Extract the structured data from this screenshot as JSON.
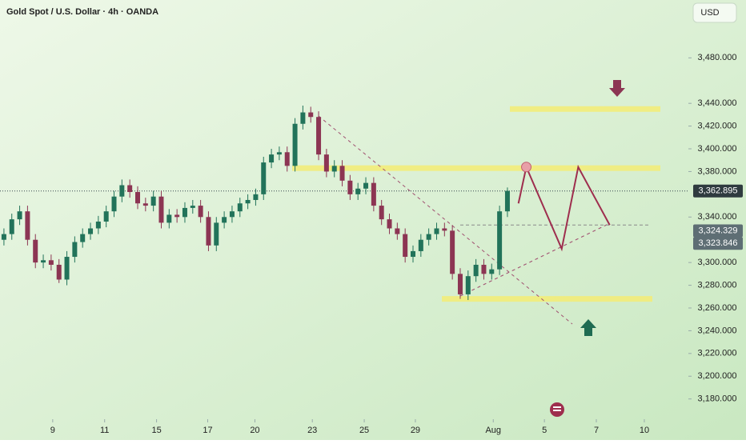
{
  "chart_data": {
    "type": "candlestick",
    "title": "Gold Spot / U.S. Dollar · 4h · OANDA",
    "currency": "USD",
    "up_color": "#22735a",
    "down_color": "#8c3553",
    "open": [
      3320,
      3325,
      3338,
      3345,
      3320,
      3300,
      3302,
      3298,
      3285,
      3305,
      3318,
      3325,
      3330,
      3336,
      3345,
      3358,
      3368,
      3362,
      3352,
      3350,
      3358,
      3335,
      3342,
      3340,
      3348,
      3350,
      3340,
      3315,
      3335,
      3340,
      3345,
      3352,
      3355,
      3360,
      3388,
      3395,
      3397,
      3385,
      3422,
      3432,
      3428,
      3395,
      3380,
      3385,
      3372,
      3360,
      3365,
      3370,
      3350,
      3338,
      3330,
      3325,
      3305,
      3310,
      3320,
      3325,
      3330,
      3328,
      3290,
      3272,
      3288,
      3298,
      3290,
      3294,
      3345
    ],
    "high": [
      3330,
      3343,
      3350,
      3350,
      3325,
      3307,
      3307,
      3303,
      3310,
      3323,
      3330,
      3335,
      3341,
      3350,
      3363,
      3373,
      3373,
      3367,
      3357,
      3363,
      3363,
      3347,
      3347,
      3353,
      3355,
      3355,
      3345,
      3340,
      3345,
      3350,
      3357,
      3360,
      3365,
      3393,
      3400,
      3402,
      3402,
      3427,
      3438,
      3437,
      3433,
      3400,
      3390,
      3390,
      3377,
      3370,
      3375,
      3375,
      3355,
      3343,
      3335,
      3330,
      3315,
      3325,
      3330,
      3335,
      3335,
      3333,
      3295,
      3293,
      3303,
      3303,
      3299,
      3350,
      3366
    ],
    "low": [
      3315,
      3320,
      3333,
      3315,
      3295,
      3295,
      3293,
      3282,
      3280,
      3300,
      3313,
      3320,
      3325,
      3331,
      3340,
      3353,
      3357,
      3347,
      3345,
      3345,
      3330,
      3330,
      3335,
      3335,
      3343,
      3335,
      3310,
      3310,
      3330,
      3335,
      3340,
      3347,
      3350,
      3355,
      3383,
      3390,
      3380,
      3380,
      3417,
      3423,
      3390,
      3375,
      3375,
      3367,
      3355,
      3355,
      3360,
      3345,
      3333,
      3325,
      3320,
      3300,
      3300,
      3305,
      3315,
      3320,
      3323,
      3285,
      3268,
      3267,
      3283,
      3285,
      3285,
      3289,
      3340
    ],
    "close": [
      3325,
      3338,
      3345,
      3320,
      3300,
      3302,
      3298,
      3285,
      3305,
      3318,
      3325,
      3330,
      3336,
      3345,
      3358,
      3368,
      3362,
      3352,
      3350,
      3358,
      3335,
      3342,
      3340,
      3348,
      3350,
      3340,
      3315,
      3335,
      3340,
      3345,
      3352,
      3355,
      3360,
      3388,
      3395,
      3397,
      3385,
      3422,
      3432,
      3428,
      3395,
      3380,
      3385,
      3372,
      3360,
      3365,
      3370,
      3350,
      3338,
      3330,
      3325,
      3305,
      3310,
      3320,
      3325,
      3330,
      3328,
      3290,
      3272,
      3288,
      3298,
      3290,
      3294,
      3345,
      3363
    ],
    "xlim": [
      -0.5,
      87
    ],
    "xticks": [
      {
        "value": 6.2,
        "label": "9"
      },
      {
        "value": 12.8,
        "label": "11"
      },
      {
        "value": 19.4,
        "label": "15"
      },
      {
        "value": 25.9,
        "label": "17"
      },
      {
        "value": 31.9,
        "label": "20"
      },
      {
        "value": 39.2,
        "label": "23"
      },
      {
        "value": 45.8,
        "label": "25"
      },
      {
        "value": 52.3,
        "label": "29"
      },
      {
        "value": 62.2,
        "label": "Aug"
      },
      {
        "value": 68.7,
        "label": "5"
      },
      {
        "value": 75.3,
        "label": "7"
      },
      {
        "value": 81.4,
        "label": "10"
      }
    ],
    "ylim": [
      3165,
      3495
    ],
    "yticks": [
      {
        "value": 3480,
        "label": "3,480.000"
      },
      {
        "value": 3440,
        "label": "3,440.000"
      },
      {
        "value": 3420,
        "label": "3,420.000"
      },
      {
        "value": 3400,
        "label": "3,400.000"
      },
      {
        "value": 3380,
        "label": "3,380.000"
      },
      {
        "value": 3340,
        "label": "3,340.000"
      },
      {
        "value": 3300,
        "label": "3,300.000"
      },
      {
        "value": 3280,
        "label": "3,280.000"
      },
      {
        "value": 3260,
        "label": "3,260.000"
      },
      {
        "value": 3240,
        "label": "3,240.000"
      },
      {
        "value": 3220,
        "label": "3,220.000"
      },
      {
        "value": 3200,
        "label": "3,200.000"
      },
      {
        "value": 3180,
        "label": "3,180.000"
      }
    ],
    "price_labels": [
      {
        "value": 3362.895,
        "label": "3,362.895"
      },
      {
        "value": 3324.329,
        "label": "3,324.329"
      },
      {
        "value": 3323.846,
        "label": "3,323.846"
      }
    ],
    "zones": [
      3435,
      3383,
      3268
    ],
    "target_level": 3333,
    "zigzag": {
      "x": [
        65.4,
        66.4,
        70.9,
        73,
        77
      ],
      "y": [
        3352,
        3384,
        3312,
        3384,
        3333
      ]
    }
  }
}
